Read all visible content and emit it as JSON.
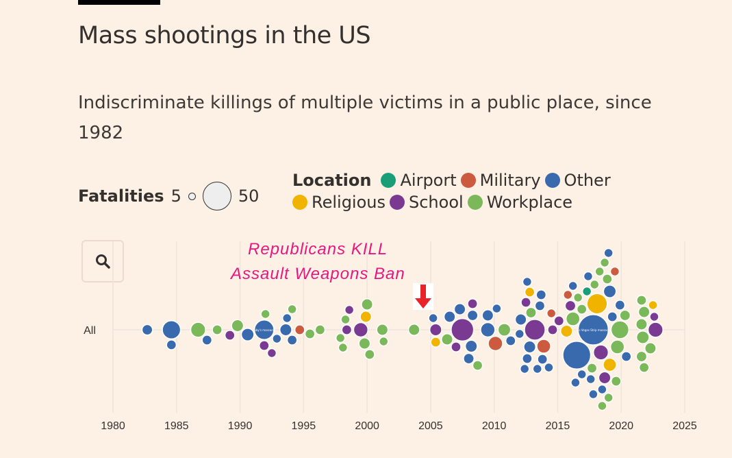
{
  "header": {
    "title": "Mass shootings in the US",
    "subtitle": "Indiscriminate killings of multiple victims in a public place, since 1982"
  },
  "legend": {
    "fatalities_label": "Fatalities",
    "size_min": "5",
    "size_max": "50",
    "location_label": "Location",
    "locations": [
      {
        "name": "Airport",
        "color": "#1a9e77"
      },
      {
        "name": "Military",
        "color": "#cc5a3e"
      },
      {
        "name": "Other",
        "color": "#3a6aae"
      },
      {
        "name": "Religious",
        "color": "#f0b400"
      },
      {
        "name": "School",
        "color": "#7a3a92"
      },
      {
        "name": "Workplace",
        "color": "#7ab85a"
      }
    ]
  },
  "controls": {
    "search_icon": "magnifier-icon"
  },
  "annotation": {
    "line1": "Republicans KILL",
    "line2": "Assault Weapons Ban",
    "arrow_icon": "down-arrow-icon",
    "arrow_color": "#e8232a",
    "text_color": "#e8177f"
  },
  "chart_data": {
    "type": "scatter",
    "subtype": "beeswarm",
    "title": "Mass shootings in the US",
    "xlabel": "",
    "ylabel": "",
    "row_labels": [
      "All"
    ],
    "xlim": [
      1980,
      2025
    ],
    "xticks": [
      "1980",
      "1985",
      "1990",
      "1995",
      "2000",
      "2005",
      "2010",
      "2015",
      "2020",
      "2025"
    ],
    "size_field": "fatalities",
    "grid": true,
    "bubble_labels": [
      {
        "year": 1991.9,
        "text": "Luby's massacre"
      },
      {
        "year": 2017.8,
        "text": "Las Vegas Strip massacre"
      }
    ],
    "fields": [
      "year",
      "fatalities",
      "location"
    ],
    "points": [
      [
        1982.7,
        7,
        "Other"
      ],
      [
        1984.6,
        21,
        "Other"
      ],
      [
        1984.6,
        6,
        "Other"
      ],
      [
        1986.7,
        14,
        "Workplace"
      ],
      [
        1987.4,
        6,
        "Other"
      ],
      [
        1988.2,
        6,
        "Workplace"
      ],
      [
        1989.2,
        6,
        "School"
      ],
      [
        1989.8,
        9,
        "Workplace"
      ],
      [
        1990.6,
        10,
        "Other"
      ],
      [
        1991.9,
        24,
        "Other"
      ],
      [
        1991.9,
        6,
        "School"
      ],
      [
        1992.0,
        5,
        "Workplace"
      ],
      [
        1992.5,
        5,
        "School"
      ],
      [
        1992.9,
        5,
        "Other"
      ],
      [
        1993.6,
        9,
        "Other"
      ],
      [
        1993.7,
        5,
        "Other"
      ],
      [
        1994.1,
        6,
        "Other"
      ],
      [
        1994.1,
        5,
        "Workplace"
      ],
      [
        1994.7,
        6,
        "Military"
      ],
      [
        1995.5,
        6,
        "Workplace"
      ],
      [
        1996.3,
        6,
        "Workplace"
      ],
      [
        1997.9,
        5,
        "Workplace"
      ],
      [
        1998.3,
        5,
        "Workplace"
      ],
      [
        1998.4,
        6,
        "School"
      ],
      [
        1998.1,
        5,
        "Workplace"
      ],
      [
        1998.6,
        5,
        "School"
      ],
      [
        1999.5,
        13,
        "School"
      ],
      [
        1999.8,
        8,
        "Workplace"
      ],
      [
        2000.2,
        6,
        "Workplace"
      ],
      [
        1999.9,
        8,
        "Religious"
      ],
      [
        2000.0,
        8,
        "Workplace"
      ],
      [
        2001.3,
        5,
        "Workplace"
      ],
      [
        2001.2,
        8,
        "Workplace"
      ],
      [
        2003.7,
        8,
        "Workplace"
      ],
      [
        2005.2,
        5,
        "Other"
      ],
      [
        2005.4,
        9,
        "School"
      ],
      [
        2005.4,
        6,
        "Religious"
      ],
      [
        2006.3,
        8,
        "Workplace"
      ],
      [
        2007.0,
        6,
        "School"
      ],
      [
        2007.5,
        32,
        "School"
      ],
      [
        2008.3,
        7,
        "Other"
      ],
      [
        2008.2,
        9,
        "Other"
      ],
      [
        2006.5,
        8,
        "Other"
      ],
      [
        2007.3,
        8,
        "Other"
      ],
      [
        2008.0,
        7,
        "Other"
      ],
      [
        2008.3,
        6,
        "School"
      ],
      [
        2008.7,
        6,
        "Workplace"
      ],
      [
        2009.5,
        13,
        "Other"
      ],
      [
        2010.1,
        13,
        "Military"
      ],
      [
        2009.5,
        8,
        "Other"
      ],
      [
        2010.2,
        5,
        "Other"
      ],
      [
        2010.8,
        10,
        "Workplace"
      ],
      [
        2011.3,
        6,
        "Other"
      ],
      [
        2012.4,
        5,
        "Other"
      ],
      [
        2012.5,
        6,
        "School"
      ],
      [
        2012.8,
        9,
        "Other"
      ],
      [
        2012.6,
        6,
        "Other"
      ],
      [
        2012.1,
        8,
        "Other"
      ],
      [
        2012.0,
        5,
        "Other"
      ],
      [
        2013.2,
        27,
        "School"
      ],
      [
        2013.4,
        5,
        "Other"
      ],
      [
        2013.6,
        6,
        "Other"
      ],
      [
        2013.9,
        12,
        "Military"
      ],
      [
        2014.5,
        5,
        "Military"
      ],
      [
        2012.9,
        7,
        "Workplace"
      ],
      [
        2012.8,
        6,
        "Religious"
      ],
      [
        2012.6,
        5,
        "Other"
      ],
      [
        2013.8,
        6,
        "Other"
      ],
      [
        2013.7,
        6,
        "Other"
      ],
      [
        2014.3,
        5,
        "Other"
      ],
      [
        2014.6,
        6,
        "School"
      ],
      [
        2015.1,
        6,
        "School"
      ],
      [
        2015.7,
        9,
        "Religious"
      ],
      [
        2016.2,
        12,
        "Workplace"
      ],
      [
        2016.5,
        49,
        "Other"
      ],
      [
        2017.8,
        58,
        "Other"
      ],
      [
        2018.4,
        14,
        "School"
      ],
      [
        2018.7,
        9,
        "School"
      ],
      [
        2019.9,
        20,
        "Workplace"
      ],
      [
        2018.1,
        26,
        "Religious"
      ],
      [
        2016.0,
        7,
        "School"
      ],
      [
        2015.8,
        5,
        "Military"
      ],
      [
        2017.3,
        5,
        "Airport"
      ],
      [
        2016.2,
        5,
        "Other"
      ],
      [
        2016.9,
        5,
        "Other"
      ],
      [
        2019.1,
        10,
        "Other"
      ],
      [
        2019.7,
        12,
        "Workplace"
      ],
      [
        2019.9,
        6,
        "Other"
      ],
      [
        2019.1,
        11,
        "Religious"
      ],
      [
        2018.5,
        5,
        "Other"
      ],
      [
        2017.9,
        5,
        "Workplace"
      ],
      [
        2018.3,
        5,
        "Workplace"
      ],
      [
        2018.7,
        5,
        "Workplace"
      ],
      [
        2019.0,
        5,
        "Workplace"
      ],
      [
        2019.3,
        6,
        "Other"
      ],
      [
        2019.5,
        5,
        "Military"
      ],
      [
        2017.6,
        5,
        "Other"
      ],
      [
        2016.4,
        5,
        "Other"
      ],
      [
        2016.6,
        5,
        "Workplace"
      ],
      [
        2018.9,
        6,
        "Workplace"
      ],
      [
        2019.6,
        6,
        "Workplace"
      ],
      [
        2020.3,
        7,
        "Workplace"
      ],
      [
        2019.0,
        5,
        "Other"
      ],
      [
        2018.5,
        5,
        "Workplace"
      ],
      [
        2017.8,
        5,
        "Other"
      ],
      [
        2020.4,
        6,
        "Other"
      ],
      [
        2021.6,
        6,
        "Workplace"
      ],
      [
        2021.6,
        8,
        "Workplace"
      ],
      [
        2021.7,
        10,
        "Workplace"
      ],
      [
        2021.8,
        8,
        "Workplace"
      ],
      [
        2022.3,
        8,
        "Workplace"
      ],
      [
        2022.6,
        5,
        "School"
      ],
      [
        2022.7,
        14,
        "School"
      ],
      [
        2022.5,
        5,
        "Religious"
      ],
      [
        2021.6,
        7,
        "Workplace"
      ],
      [
        2021.8,
        6,
        "Workplace"
      ],
      [
        2016.9,
        6,
        "Workplace"
      ],
      [
        2017.4,
        5,
        "Other"
      ],
      [
        2017.7,
        6,
        "Workplace"
      ]
    ]
  }
}
